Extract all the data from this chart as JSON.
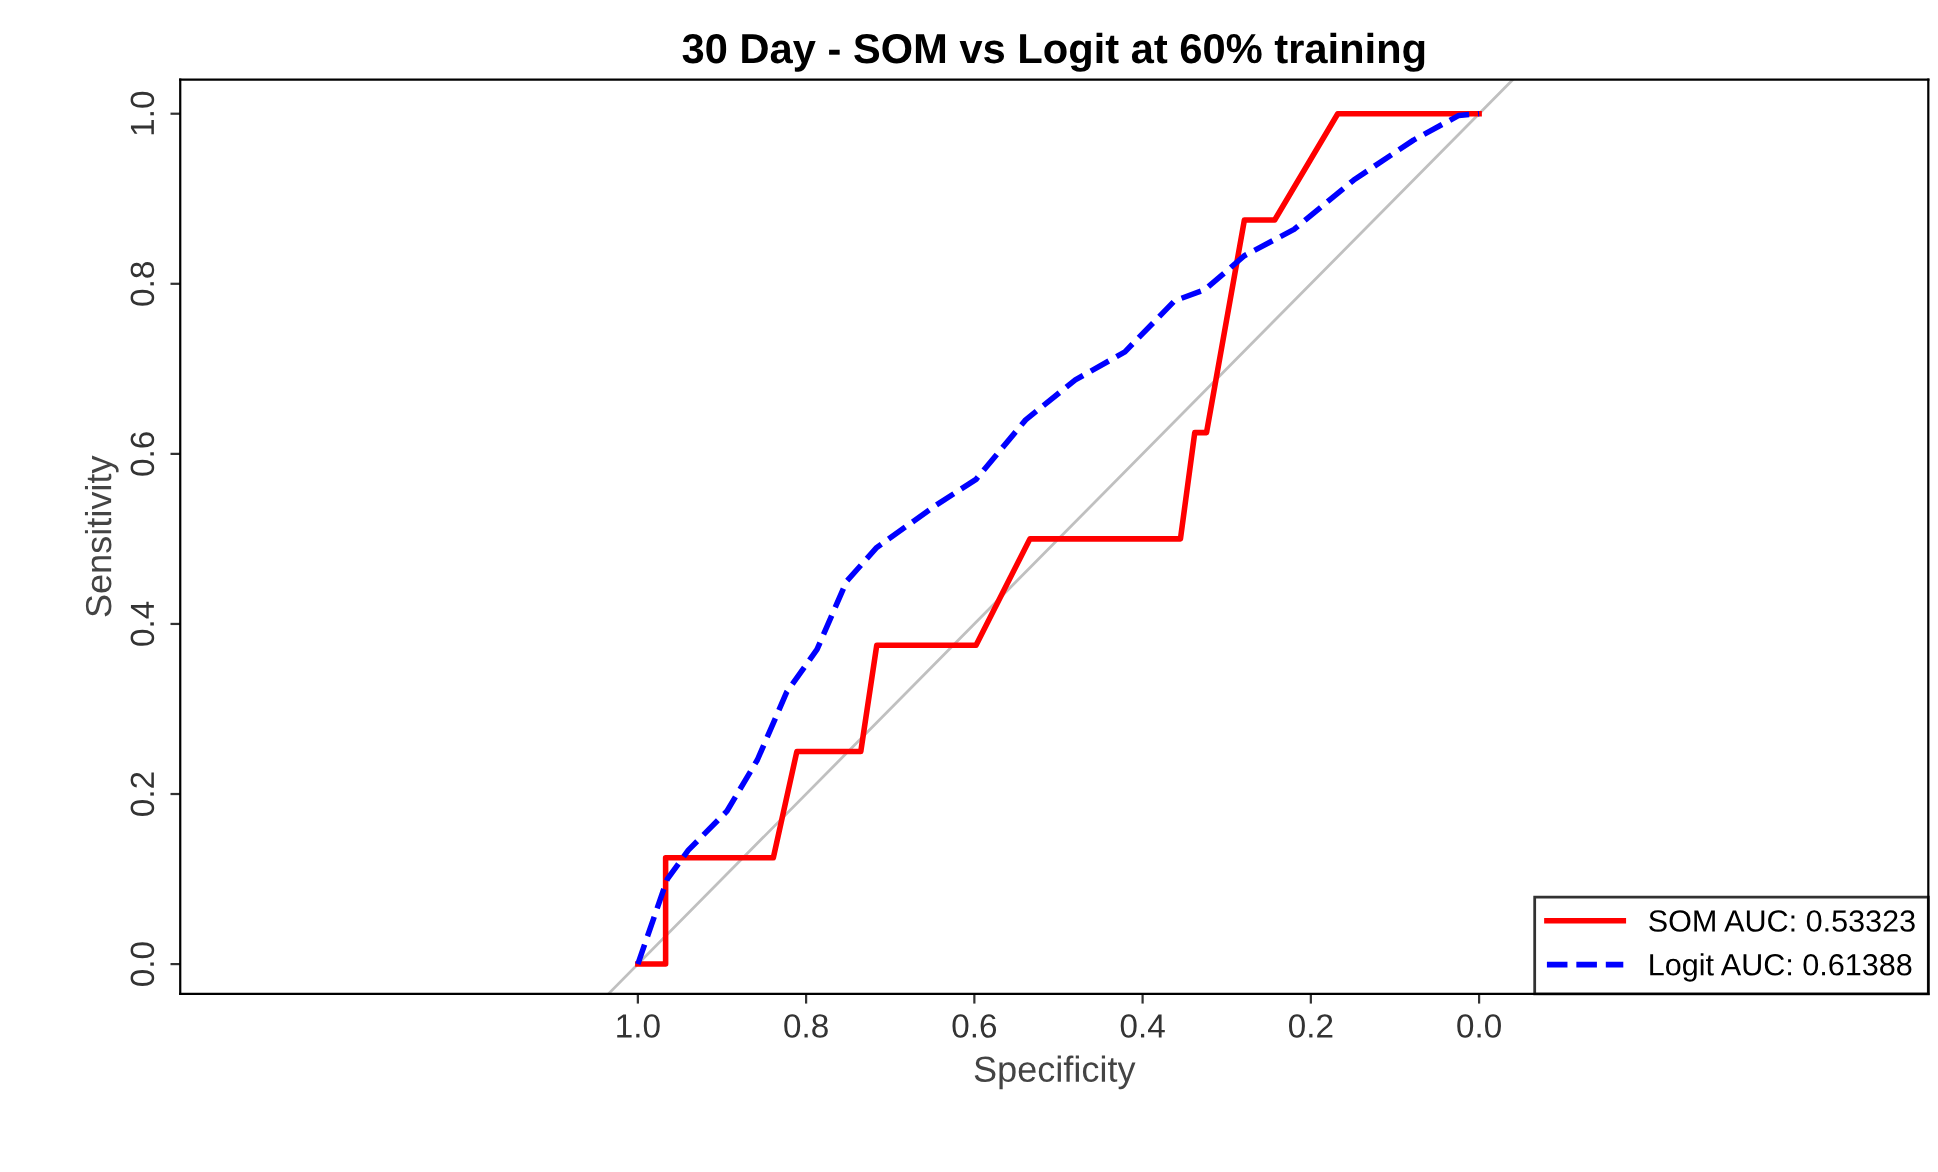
{
  "chart_data": {
    "type": "line",
    "title": "30 Day - SOM vs Logit at 60% training",
    "xlabel": "Specificity",
    "ylabel": "Sensitivity",
    "xlim": [
      1.544,
      -0.534
    ],
    "ylim": [
      -0.035,
      1.04
    ],
    "xticks": [
      {
        "value": 1.0,
        "label": "1.0"
      },
      {
        "value": 0.8,
        "label": "0.8"
      },
      {
        "value": 0.6,
        "label": "0.6"
      },
      {
        "value": 0.4,
        "label": "0.4"
      },
      {
        "value": 0.2,
        "label": "0.2"
      },
      {
        "value": 0.0,
        "label": "0.0"
      }
    ],
    "yticks": [
      {
        "value": 0.0,
        "label": "0.0"
      },
      {
        "value": 0.2,
        "label": "0.2"
      },
      {
        "value": 0.4,
        "label": "0.4"
      },
      {
        "value": 0.6,
        "label": "0.6"
      },
      {
        "value": 0.8,
        "label": "0.8"
      },
      {
        "value": 1.0,
        "label": "1.0"
      }
    ],
    "grid": false,
    "legend": "bottom right",
    "marker": "none",
    "series": [
      {
        "color": "#c0c0c0",
        "line_style": "solid",
        "x": [
          1.035,
          -0.04
        ],
        "values": [
          -0.035,
          1.04
        ]
      },
      {
        "name": "SOM AUC: 0.53323",
        "color": "#ff0000",
        "line_style": "solid",
        "x": [
          1.0,
          0.967,
          0.967,
          0.839,
          0.811,
          0.735,
          0.716,
          0.598,
          0.534,
          0.355,
          0.338,
          0.324,
          0.279,
          0.243,
          0.168,
          0.0
        ],
        "values": [
          0.0,
          0.0,
          0.125,
          0.125,
          0.25,
          0.25,
          0.375,
          0.375,
          0.5,
          0.5,
          0.625,
          0.625,
          0.875,
          0.875,
          1.0,
          1.0
        ]
      },
      {
        "name": "Logit AUC: 0.61388",
        "color": "#0000ff",
        "line_style": "dashed",
        "x": [
          1.0,
          0.965,
          0.94,
          0.894,
          0.858,
          0.823,
          0.787,
          0.752,
          0.716,
          0.645,
          0.598,
          0.539,
          0.48,
          0.421,
          0.362,
          0.326,
          0.279,
          0.22,
          0.149,
          0.078,
          0.024,
          0.0
        ],
        "values": [
          0.0,
          0.1,
          0.134,
          0.18,
          0.24,
          0.32,
          0.37,
          0.45,
          0.49,
          0.54,
          0.57,
          0.64,
          0.687,
          0.72,
          0.78,
          0.793,
          0.833,
          0.864,
          0.922,
          0.969,
          0.998,
          1.0
        ]
      }
    ]
  }
}
